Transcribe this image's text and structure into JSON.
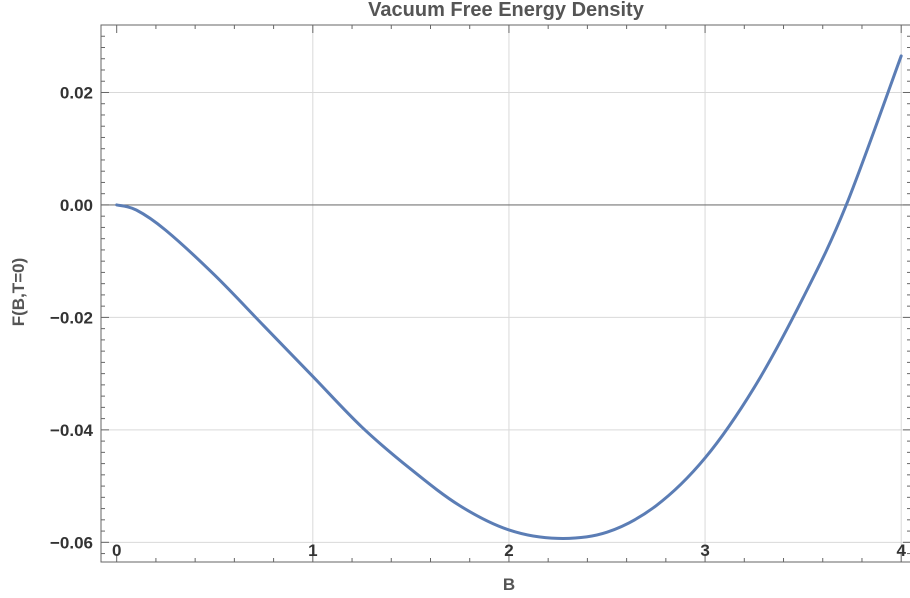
{
  "chart_data": {
    "type": "line",
    "title": "Vacuum Free Energy Density",
    "xlabel": "B",
    "ylabel": "F(B,T=0)",
    "xlim": [
      -0.08,
      4.05
    ],
    "ylim": [
      -0.0635,
      0.032
    ],
    "grid": true,
    "x_ticks": [
      0,
      1,
      2,
      3,
      4
    ],
    "x_tick_labels": [
      "0",
      "1",
      "2",
      "3",
      "4"
    ],
    "y_ticks": [
      0.02,
      0.0,
      -0.02,
      -0.04,
      -0.06
    ],
    "y_tick_labels": [
      "0.02",
      "0.00",
      "−0.02",
      "−0.04",
      "−0.06"
    ],
    "series": [
      {
        "color": "#5b7db5",
        "x": [
          0,
          0.1,
          0.25,
          0.5,
          0.75,
          1.0,
          1.25,
          1.5,
          1.75,
          2.0,
          2.25,
          2.5,
          2.75,
          3.0,
          3.25,
          3.5,
          3.72,
          4.0
        ],
        "y": [
          0.0,
          -0.0009,
          -0.0045,
          -0.0125,
          -0.0215,
          -0.0305,
          -0.0395,
          -0.047,
          -0.0535,
          -0.0578,
          -0.0593,
          -0.0582,
          -0.0535,
          -0.045,
          -0.0325,
          -0.0165,
          0.0,
          0.0265
        ]
      }
    ]
  }
}
